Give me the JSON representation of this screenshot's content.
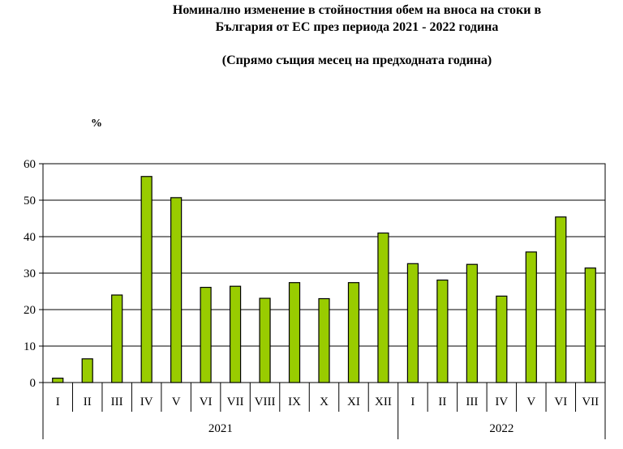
{
  "chart_data": {
    "type": "bar",
    "title": "Номинално изменение в стойностния обем на вноса на стоки в България от ЕС през периода 2021 - 2022 година",
    "title_lines": [
      "Номинално изменение в стойностния обем на вноса на стоки в",
      "България от ЕС през периода 2021 - 2022 година"
    ],
    "subtitle": "(Спрямо същия месец на предходната година)",
    "ylabel": "%",
    "xlabel": "",
    "ylim": [
      0,
      60
    ],
    "yticks": [
      0,
      10,
      20,
      30,
      40,
      50,
      60
    ],
    "grid": true,
    "legend": "none",
    "bar_color": "#99cc00",
    "bar_border": "#000000",
    "categories": [
      "I",
      "II",
      "III",
      "IV",
      "V",
      "VI",
      "VII",
      "VIII",
      "IX",
      "X",
      "XI",
      "XII",
      "I",
      "II",
      "III",
      "IV",
      "V",
      "VI",
      "VII"
    ],
    "groups": [
      {
        "label": "2021",
        "count": 12
      },
      {
        "label": "2022",
        "count": 7
      }
    ],
    "values": [
      1.2,
      6.5,
      24.0,
      56.5,
      50.7,
      26.1,
      26.4,
      23.1,
      27.4,
      23.0,
      27.4,
      41.0,
      32.6,
      28.1,
      32.4,
      23.7,
      35.8,
      45.4,
      31.4
    ]
  }
}
